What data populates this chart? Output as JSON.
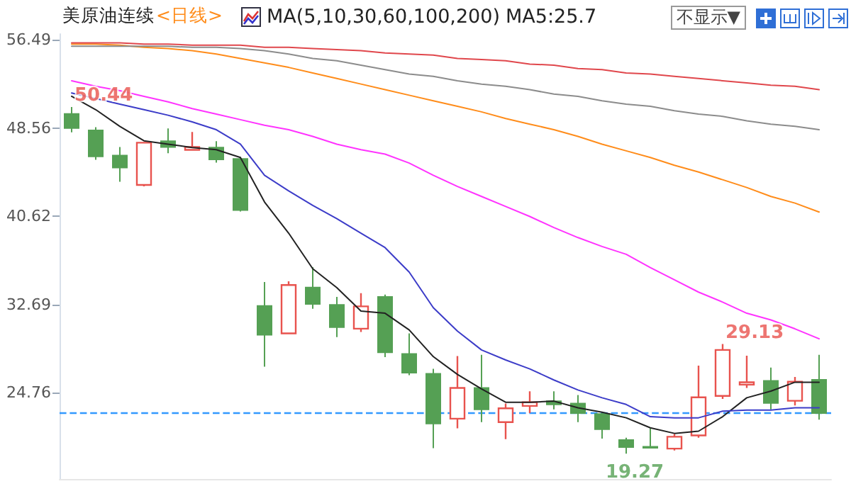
{
  "chart_data": {
    "type": "candlestick",
    "title": "美原油连续",
    "subtitle": "<日线>",
    "annotations": [
      "MA(5,10,30,60,100,200)",
      "MA5:25.7",
      "不显示▼",
      {
        "text": "50.44",
        "y": 50.44
      },
      "29.13",
      {
        "text": "19.27",
        "y": 19.27
      }
    ],
    "categories": [
      null,
      null,
      null,
      null,
      null,
      null,
      null,
      null,
      null,
      null,
      null,
      null,
      null,
      null,
      null,
      null,
      null,
      null,
      null,
      null,
      null,
      null,
      null,
      null,
      null,
      null,
      null,
      null,
      null,
      null,
      null,
      null
    ],
    "ohlc": [
      [
        49.82,
        50.44,
        48.16,
        48.55
      ],
      [
        48.33,
        48.63,
        45.7,
        45.99
      ],
      [
        46.08,
        46.84,
        43.72,
        45.0
      ],
      [
        43.43,
        47.27,
        43.3,
        47.23
      ],
      [
        47.36,
        48.51,
        46.28,
        46.84
      ],
      [
        46.59,
        48.2,
        46.5,
        46.84
      ],
      [
        46.79,
        47.36,
        45.44,
        45.73
      ],
      [
        45.77,
        45.95,
        41.04,
        41.17
      ],
      [
        32.56,
        34.7,
        27.1,
        29.96
      ],
      [
        30.09,
        34.77,
        30.09,
        34.44
      ],
      [
        34.22,
        36.05,
        32.3,
        32.73
      ],
      [
        32.65,
        33.37,
        29.75,
        30.64
      ],
      [
        30.51,
        33.71,
        30.22,
        32.52
      ],
      [
        33.37,
        33.58,
        27.96,
        28.38
      ],
      [
        28.25,
        30.09,
        26.33,
        26.55
      ],
      [
        26.46,
        26.9,
        19.77,
        21.99
      ],
      [
        22.42,
        28.05,
        21.56,
        25.18
      ],
      [
        25.18,
        28.17,
        22.11,
        23.26
      ],
      [
        22.11,
        23.78,
        20.58,
        23.35
      ],
      [
        23.57,
        24.89,
        22.93,
        23.9
      ],
      [
        23.99,
        24.89,
        23.26,
        23.7
      ],
      [
        23.78,
        24.54,
        22.11,
        22.93
      ],
      [
        22.84,
        22.93,
        20.63,
        21.47
      ],
      [
        20.5,
        20.71,
        19.27,
        19.86
      ],
      [
        19.9,
        21.56,
        19.81,
        19.81
      ],
      [
        19.73,
        21.05,
        19.56,
        20.8
      ],
      [
        20.92,
        27.19,
        20.71,
        24.34
      ],
      [
        24.47,
        29.13,
        24.2,
        28.6
      ],
      [
        25.48,
        28.09,
        25.18,
        25.69
      ],
      [
        25.82,
        27.02,
        23.26,
        23.83
      ],
      [
        24.03,
        26.17,
        23.61,
        25.74
      ],
      [
        25.91,
        28.17,
        22.33,
        22.93
      ]
    ],
    "colors": [
      "#55a054",
      "#55a054",
      "#55a054",
      "#e8534e",
      "#55a054",
      "#e8534e",
      "#55a054",
      "#55a054",
      "#55a054",
      "#e8534e",
      "#55a054",
      "#55a054",
      "#e8534e",
      "#55a054",
      "#55a054",
      "#55a054",
      "#e8534e",
      "#55a054",
      "#e8534e",
      "#e8534e",
      "#55a054",
      "#55a054",
      "#55a054",
      "#55a054",
      "#55a054",
      "#e8534e",
      "#e8534e",
      "#e8534e",
      "#e8534e",
      "#55a054",
      "#e8534e",
      "#55a054"
    ],
    "series": [
      {
        "type": "line",
        "color": "#222222",
        "values": [
          51.4,
          50.2,
          48.7,
          47.4,
          47.1,
          46.8,
          46.6,
          45.9,
          41.9,
          39.1,
          35.9,
          34.2,
          32.1,
          31.9,
          30.4,
          28.0,
          26.4,
          25.1,
          23.9,
          23.9,
          24.0,
          23.4,
          23.0,
          22.5,
          21.6,
          21.1,
          21.3,
          22.6,
          24.3,
          24.9,
          25.7,
          25.7
        ]
      },
      {
        "type": "line",
        "color": "#3c3cc8",
        "values": [
          51.7,
          51.2,
          50.7,
          50.2,
          49.7,
          49.1,
          48.4,
          47.1,
          44.3,
          42.9,
          41.6,
          40.4,
          39.1,
          37.8,
          35.6,
          32.4,
          30.3,
          28.6,
          27.7,
          26.9,
          25.9,
          25.0,
          24.3,
          23.7,
          22.6,
          22.5,
          22.5,
          23.1,
          23.2,
          23.2,
          23.4,
          23.4
        ]
      },
      {
        "type": "line",
        "color": "#ff33ff",
        "values": [
          52.8,
          52.3,
          51.9,
          51.4,
          50.9,
          50.3,
          49.8,
          49.3,
          48.8,
          48.4,
          47.8,
          47.1,
          46.6,
          46.2,
          45.4,
          44.3,
          43.3,
          42.4,
          41.5,
          40.6,
          39.6,
          38.7,
          37.9,
          37.2,
          36.0,
          34.9,
          33.8,
          32.9,
          31.9,
          31.3,
          30.5,
          29.6
        ]
      },
      {
        "type": "line",
        "color": "#ff8c1a",
        "values": [
          56.1,
          56.1,
          56.0,
          55.8,
          55.7,
          55.5,
          55.2,
          54.8,
          54.4,
          54.0,
          53.5,
          53.0,
          52.5,
          52.0,
          51.5,
          51.0,
          50.5,
          50.0,
          49.4,
          48.9,
          48.4,
          47.8,
          47.1,
          46.5,
          45.9,
          45.2,
          44.6,
          43.9,
          43.2,
          42.4,
          41.8,
          41.0
        ]
      },
      {
        "type": "line",
        "color": "#8c8c8c",
        "values": [
          55.9,
          55.9,
          55.9,
          55.9,
          55.9,
          55.8,
          55.8,
          55.7,
          55.5,
          55.2,
          54.8,
          54.6,
          54.2,
          53.8,
          53.4,
          53.2,
          52.8,
          52.5,
          52.3,
          52.0,
          51.6,
          51.4,
          51.0,
          50.7,
          50.5,
          50.1,
          49.8,
          49.6,
          49.2,
          48.9,
          48.7,
          48.4
        ]
      },
      {
        "type": "line",
        "color": "#e0474c",
        "values": [
          56.2,
          56.2,
          56.2,
          56.1,
          56.1,
          56.0,
          56.0,
          56.0,
          55.8,
          55.8,
          55.7,
          55.6,
          55.5,
          55.3,
          55.2,
          55.1,
          54.8,
          54.7,
          54.6,
          54.3,
          54.2,
          53.9,
          53.8,
          53.5,
          53.4,
          53.2,
          53.0,
          52.8,
          52.6,
          52.4,
          52.3,
          52.0
        ]
      }
    ],
    "marker": "none",
    "line_style": "solid",
    "ylim": [
      17.0,
      57.0
    ],
    "yticks": [
      24.76,
      32.69,
      40.62,
      48.56,
      56.49
    ],
    "ref_lines": [
      {
        "axis": "y",
        "value": 22.9,
        "color": "#3399ff",
        "line_style": "dashed"
      }
    ],
    "tick_labels": "y",
    "grid": false
  }
}
